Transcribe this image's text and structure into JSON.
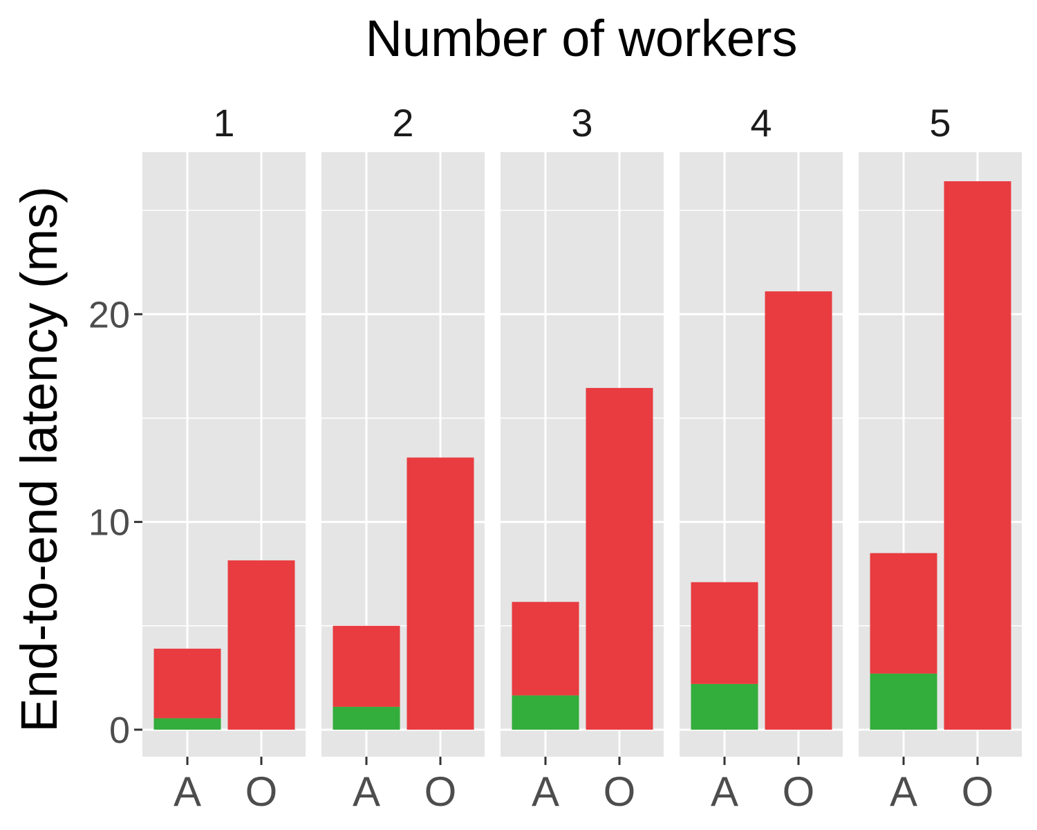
{
  "chart_data": {
    "type": "bar",
    "layout": "faceted-stacked",
    "title": "Number of workers",
    "xlabel": "",
    "ylabel": "End-to-end latency (ms)",
    "facets": [
      "1",
      "2",
      "3",
      "4",
      "5"
    ],
    "categories": [
      "A",
      "O"
    ],
    "ylim": [
      -1.3,
      27.8
    ],
    "yticks": [
      0,
      10,
      20
    ],
    "yminor": [
      5,
      15,
      25
    ],
    "grid": true,
    "colors": {
      "bottom": "#33ad3b",
      "top": "#e83c40",
      "panel": "#e5e5e5",
      "grid": "#ffffff"
    },
    "series": [
      {
        "segment": "bottom",
        "values": [
          [
            0.55,
            0
          ],
          [
            1.1,
            0
          ],
          [
            1.65,
            0
          ],
          [
            2.2,
            0
          ],
          [
            2.7,
            0
          ]
        ]
      },
      {
        "segment": "top",
        "values": [
          [
            3.35,
            8.15
          ],
          [
            3.9,
            13.1
          ],
          [
            4.5,
            16.45
          ],
          [
            4.9,
            21.1
          ],
          [
            5.8,
            26.4
          ]
        ]
      }
    ],
    "totals": [
      [
        3.9,
        8.15
      ],
      [
        5.0,
        13.1
      ],
      [
        6.15,
        16.45
      ],
      [
        7.1,
        21.1
      ],
      [
        8.5,
        26.4
      ]
    ]
  }
}
